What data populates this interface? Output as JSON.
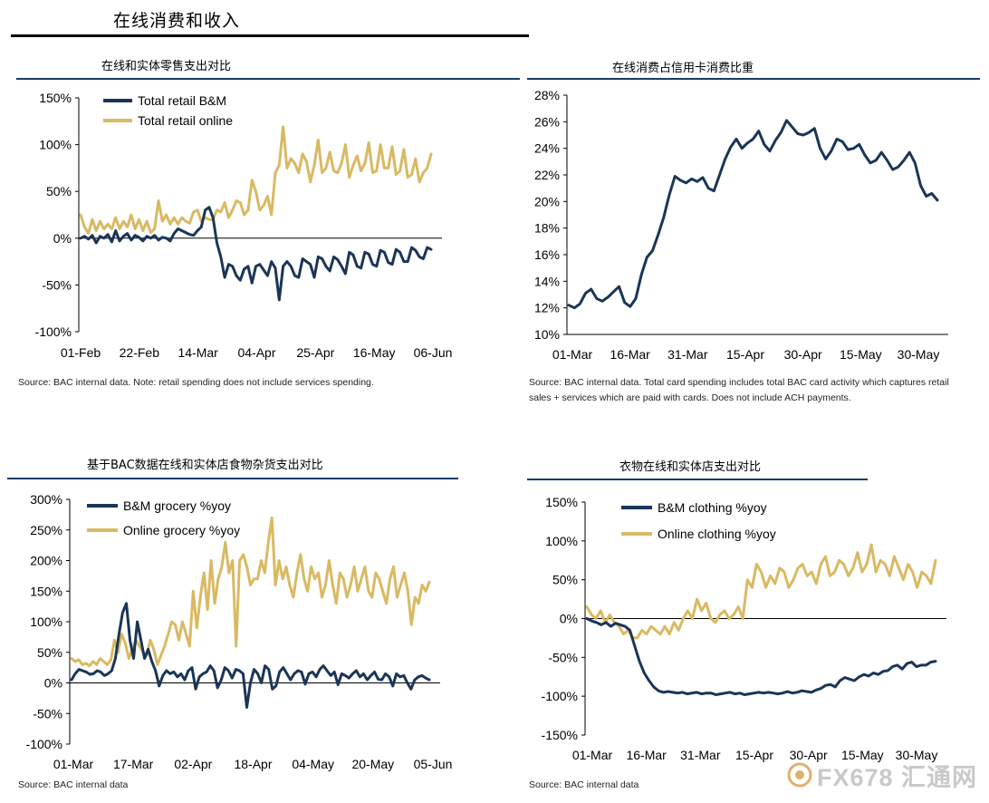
{
  "page_title": "在线消费和收入",
  "watermark": "FX678 汇通网",
  "colors": {
    "dark": "#1b3557",
    "gold": "#d9b962",
    "rule": "#1b3a6b"
  },
  "panels": [
    {
      "title": "在线和实体零售支出对比",
      "source": [
        "Source: BAC internal data. Note: retail spending does not include services spending."
      ],
      "chart_data": {
        "type": "line",
        "yticks": [
          "150%",
          "100%",
          "50%",
          "0%",
          "-50%",
          "-100%"
        ],
        "ylim": [
          -100,
          150
        ],
        "xticks": [
          "01-Feb",
          "22-Feb",
          "14-Mar",
          "04-Apr",
          "25-Apr",
          "16-May",
          "06-Jun"
        ],
        "legend_position": "top-left",
        "series": [
          {
            "name": "Total retail B&M",
            "color": "#1b3557",
            "values": [
              0,
              2,
              -1,
              3,
              -5,
              2,
              0,
              4,
              -4,
              8,
              -3,
              2,
              5,
              -2,
              3,
              1,
              -3,
              2,
              0,
              3,
              -2,
              1,
              0,
              -3,
              5,
              10,
              8,
              6,
              4,
              3,
              8,
              12,
              30,
              33,
              22,
              -5,
              -20,
              -42,
              -28,
              -30,
              -40,
              -45,
              -33,
              -30,
              -48,
              -30,
              -28,
              -34,
              -40,
              -25,
              -32,
              -66,
              -30,
              -25,
              -30,
              -40,
              -42,
              -22,
              -25,
              -28,
              -42,
              -20,
              -22,
              -30,
              -35,
              -20,
              -23,
              -30,
              -38,
              -15,
              -18,
              -30,
              -32,
              -15,
              -17,
              -28,
              -30,
              -13,
              -15,
              -26,
              -28,
              -12,
              -15,
              -25,
              -25,
              -10,
              -13,
              -20,
              -22,
              -10,
              -12
            ]
          },
          {
            "name": "Total retail online",
            "color": "#d9b962",
            "values": [
              25,
              12,
              5,
              20,
              8,
              18,
              10,
              15,
              10,
              22,
              10,
              18,
              12,
              25,
              10,
              20,
              8,
              18,
              6,
              10,
              40,
              18,
              25,
              15,
              22,
              15,
              22,
              18,
              16,
              28,
              30,
              18,
              22,
              20,
              20,
              30,
              28,
              38,
              22,
              30,
              40,
              38,
              25,
              30,
              62,
              50,
              30,
              35,
              45,
              25,
              70,
              78,
              119,
              75,
              85,
              80,
              70,
              90,
              82,
              60,
              78,
              105,
              70,
              75,
              92,
              72,
              70,
              80,
              100,
              65,
              78,
              88,
              72,
              80,
              102,
              70,
              72,
              100,
              75,
              75,
              98,
              68,
              72,
              95,
              65,
              68,
              85,
              60,
              70,
              75,
              90
            ]
          }
        ]
      }
    },
    {
      "title": "在线消费占信用卡消费比重",
      "source": [
        "Source: BAC internal data. Total card spending includes total BAC card activity which captures retail",
        "sales + services which are paid with cards. Does not include ACH payments."
      ],
      "chart_data": {
        "type": "line",
        "yticks": [
          "28%",
          "26%",
          "24%",
          "22%",
          "20%",
          "18%",
          "16%",
          "14%",
          "12%",
          "10%"
        ],
        "ylim": [
          10,
          28
        ],
        "xticks": [
          "01-Mar",
          "16-Mar",
          "31-Mar",
          "15-Apr",
          "30-Apr",
          "15-May",
          "30-May"
        ],
        "series": [
          {
            "name": "",
            "color": "#1b3557",
            "values": [
              12.2,
              12.0,
              12.3,
              13.1,
              13.4,
              12.7,
              12.5,
              12.8,
              13.2,
              13.6,
              12.4,
              12.1,
              12.7,
              14.5,
              15.8,
              16.3,
              17.5,
              18.8,
              20.5,
              21.9,
              21.6,
              21.4,
              21.7,
              21.5,
              21.8,
              21.0,
              20.8,
              22.0,
              23.2,
              24.1,
              24.7,
              24.0,
              24.4,
              24.7,
              25.3,
              24.3,
              23.8,
              24.6,
              25.2,
              26.1,
              25.6,
              25.1,
              25.0,
              25.2,
              25.5,
              24.0,
              23.2,
              23.8,
              24.7,
              24.5,
              23.9,
              24.0,
              24.3,
              23.5,
              22.9,
              23.1,
              23.7,
              23.1,
              22.4,
              22.6,
              23.1,
              23.7,
              22.9,
              21.2,
              20.4,
              20.6,
              20.1
            ]
          }
        ]
      }
    },
    {
      "title": "基于BAC数据在线和实体店食物杂货支出对比",
      "source": [
        "Source: BAC internal data"
      ],
      "chart_data": {
        "type": "line",
        "yticks": [
          "300%",
          "250%",
          "200%",
          "150%",
          "100%",
          "50%",
          "0%",
          "-50%",
          "-100%"
        ],
        "ylim": [
          -100,
          300
        ],
        "xticks": [
          "01-Mar",
          "17-Mar",
          "02-Apr",
          "18-Apr",
          "04-May",
          "20-May",
          "05-Jun"
        ],
        "legend_position": "top-left",
        "series": [
          {
            "name": "B&M grocery %yoy",
            "color": "#1b3557",
            "values": [
              5,
              15,
              22,
              20,
              18,
              14,
              15,
              20,
              18,
              12,
              15,
              20,
              40,
              80,
              115,
              130,
              70,
              40,
              100,
              70,
              40,
              55,
              35,
              20,
              -5,
              12,
              20,
              15,
              18,
              10,
              15,
              5,
              20,
              25,
              -10,
              10,
              15,
              18,
              28,
              20,
              -8,
              5,
              25,
              20,
              8,
              22,
              20,
              15,
              -40,
              0,
              22,
              15,
              0,
              28,
              22,
              -10,
              -5,
              18,
              25,
              15,
              5,
              15,
              20,
              18,
              -2,
              15,
              18,
              10,
              22,
              28,
              20,
              12,
              18,
              -3,
              15,
              12,
              8,
              15,
              20,
              10,
              15,
              5,
              12,
              18,
              6,
              5,
              15,
              10,
              -5,
              15,
              10,
              12,
              0,
              -10,
              5,
              10,
              12,
              8,
              5
            ]
          },
          {
            "name": "Online grocery %yoy",
            "color": "#d9b962",
            "values": [
              40,
              35,
              38,
              30,
              32,
              28,
              35,
              30,
              40,
              35,
              30,
              38,
              70,
              50,
              80,
              65,
              40,
              55,
              70,
              60,
              50,
              45,
              70,
              55,
              30,
              45,
              60,
              80,
              100,
              95,
              70,
              100,
              80,
              60,
              150,
              90,
              140,
              180,
              120,
              200,
              130,
              170,
              190,
              230,
              180,
              200,
              60,
              200,
              210,
              190,
              160,
              170,
              170,
              200,
              180,
              230,
              270,
              160,
              200,
              170,
              190,
              160,
              140,
              180,
              210,
              170,
              150,
              190,
              170,
              180,
              140,
              160,
              200,
              160,
              130,
              180,
              170,
              140,
              160,
              190,
              150,
              170,
              190,
              150,
              140,
              180,
              170,
              150,
              130,
              170,
              190,
              140,
              160,
              180,
              150,
              95,
              140,
              130,
              160,
              150,
              165
            ]
          }
        ]
      }
    },
    {
      "title": "衣物在线和实体店支出对比",
      "source": [
        "Source: BAC internal data"
      ],
      "chart_data": {
        "type": "line",
        "yticks": [
          "150%",
          "100%",
          "50%",
          "0%",
          "-50%",
          "-100%",
          "-150%"
        ],
        "ylim": [
          -150,
          150
        ],
        "xticks": [
          "01-Mar",
          "16-Mar",
          "31-Mar",
          "15-Apr",
          "30-Apr",
          "15-May",
          "30-May"
        ],
        "legend_position": "top-left",
        "series": [
          {
            "name": "B&M clothing %yoy",
            "color": "#1b3557",
            "values": [
              0,
              -3,
              -5,
              -8,
              -5,
              -10,
              -6,
              -8,
              -10,
              -15,
              -35,
              -55,
              -70,
              -80,
              -88,
              -93,
              -95,
              -94,
              -95,
              -96,
              -95,
              -97,
              -96,
              -95,
              -97,
              -96,
              -96,
              -98,
              -97,
              -96,
              -95,
              -97,
              -96,
              -98,
              -97,
              -96,
              -95,
              -96,
              -95,
              -96,
              -97,
              -96,
              -94,
              -96,
              -95,
              -93,
              -94,
              -95,
              -92,
              -90,
              -86,
              -85,
              -88,
              -80,
              -76,
              -78,
              -80,
              -75,
              -72,
              -74,
              -70,
              -72,
              -68,
              -67,
              -62,
              -60,
              -65,
              -58,
              -56,
              -62,
              -60,
              -60,
              -56,
              -55
            ]
          },
          {
            "name": "Online clothing %yoy",
            "color": "#d9b962",
            "values": [
              15,
              5,
              0,
              10,
              -5,
              5,
              -5,
              -10,
              -20,
              -15,
              -25,
              -25,
              -15,
              -20,
              -10,
              -15,
              -20,
              -10,
              -20,
              -5,
              -15,
              0,
              10,
              0,
              25,
              10,
              20,
              0,
              -5,
              5,
              10,
              0,
              5,
              15,
              0,
              50,
              40,
              70,
              60,
              40,
              55,
              45,
              65,
              60,
              40,
              50,
              65,
              70,
              55,
              60,
              45,
              70,
              80,
              55,
              60,
              75,
              70,
              55,
              65,
              85,
              60,
              70,
              95,
              60,
              75,
              70,
              55,
              80,
              65,
              50,
              70,
              60,
              40,
              60,
              55,
              45,
              75
            ]
          }
        ]
      }
    }
  ]
}
